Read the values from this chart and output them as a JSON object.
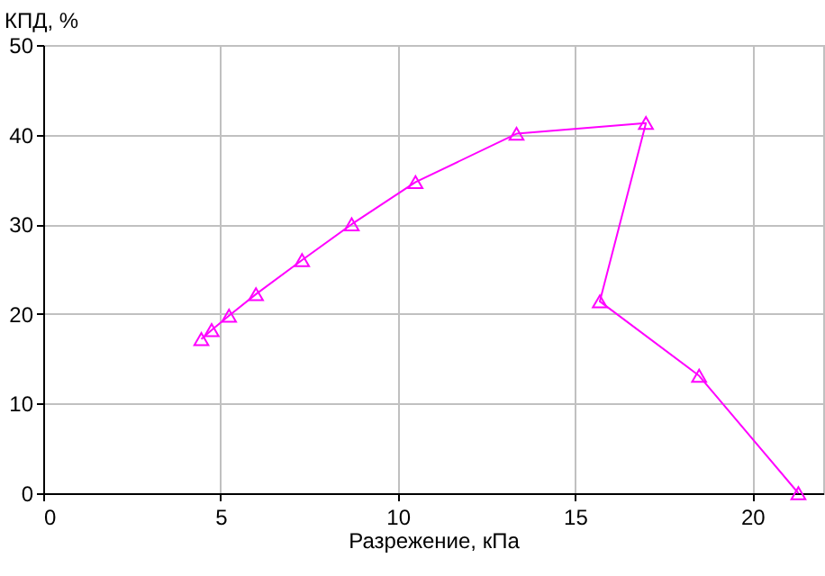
{
  "chart_data": {
    "type": "line",
    "xlabel": "Разрежение, кПа",
    "ylabel": "КПД, %",
    "x": [
      4.46,
      4.75,
      5.24,
      6.0,
      7.3,
      8.7,
      10.5,
      13.35,
      17.0,
      15.7,
      18.5,
      21.3
    ],
    "series": [
      {
        "color": "#ff00ff",
        "values": [
          17.2,
          18.2,
          19.8,
          22.2,
          26.0,
          30.0,
          34.7,
          40.1,
          41.3,
          21.4,
          13.1,
          0
        ]
      }
    ],
    "xlim": [
      0,
      22
    ],
    "xticks": [
      0,
      5,
      10,
      15,
      20
    ],
    "ylim": [
      0,
      50
    ],
    "yticks": [
      0,
      10,
      20,
      30,
      40,
      50
    ],
    "grid": true,
    "marker": "triangle",
    "line_style": "solid"
  }
}
